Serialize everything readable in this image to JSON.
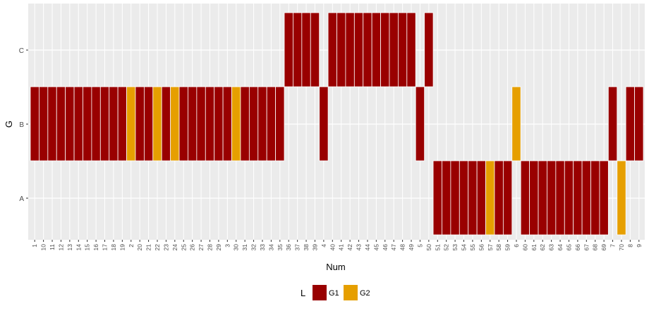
{
  "chart_data": {
    "type": "heatmap",
    "xlabel": "Num",
    "ylabel": "G",
    "y_categories": [
      "A",
      "B",
      "C"
    ],
    "x_categories": [
      "1",
      "10",
      "11",
      "12",
      "13",
      "14",
      "15",
      "16",
      "17",
      "18",
      "19",
      "2",
      "20",
      "21",
      "22",
      "23",
      "24",
      "25",
      "26",
      "27",
      "28",
      "29",
      "3",
      "30",
      "31",
      "32",
      "33",
      "34",
      "35",
      "36",
      "37",
      "38",
      "39",
      "4",
      "40",
      "41",
      "42",
      "43",
      "44",
      "45",
      "46",
      "47",
      "48",
      "49",
      "5",
      "50",
      "51",
      "52",
      "53",
      "54",
      "55",
      "56",
      "57",
      "58",
      "59",
      "6",
      "60",
      "61",
      "62",
      "63",
      "64",
      "65",
      "66",
      "67",
      "68",
      "69",
      "7",
      "70",
      "8",
      "9"
    ],
    "points": [
      [
        "1",
        "B",
        "G1"
      ],
      [
        "10",
        "B",
        "G1"
      ],
      [
        "11",
        "B",
        "G1"
      ],
      [
        "12",
        "B",
        "G1"
      ],
      [
        "13",
        "B",
        "G1"
      ],
      [
        "14",
        "B",
        "G1"
      ],
      [
        "15",
        "B",
        "G1"
      ],
      [
        "16",
        "B",
        "G1"
      ],
      [
        "17",
        "B",
        "G1"
      ],
      [
        "18",
        "B",
        "G1"
      ],
      [
        "19",
        "B",
        "G1"
      ],
      [
        "2",
        "B",
        "G2"
      ],
      [
        "20",
        "B",
        "G1"
      ],
      [
        "21",
        "B",
        "G1"
      ],
      [
        "22",
        "B",
        "G2"
      ],
      [
        "23",
        "B",
        "G1"
      ],
      [
        "24",
        "B",
        "G2"
      ],
      [
        "25",
        "B",
        "G1"
      ],
      [
        "26",
        "B",
        "G1"
      ],
      [
        "27",
        "B",
        "G1"
      ],
      [
        "28",
        "B",
        "G1"
      ],
      [
        "29",
        "B",
        "G1"
      ],
      [
        "3",
        "B",
        "G1"
      ],
      [
        "30",
        "B",
        "G2"
      ],
      [
        "31",
        "B",
        "G1"
      ],
      [
        "32",
        "B",
        "G1"
      ],
      [
        "33",
        "B",
        "G1"
      ],
      [
        "34",
        "B",
        "G1"
      ],
      [
        "35",
        "B",
        "G1"
      ],
      [
        "36",
        "C",
        "G1"
      ],
      [
        "37",
        "C",
        "G1"
      ],
      [
        "38",
        "C",
        "G1"
      ],
      [
        "39",
        "C",
        "G1"
      ],
      [
        "4",
        "B",
        "G1"
      ],
      [
        "40",
        "C",
        "G1"
      ],
      [
        "41",
        "C",
        "G1"
      ],
      [
        "42",
        "C",
        "G1"
      ],
      [
        "43",
        "C",
        "G1"
      ],
      [
        "44",
        "C",
        "G1"
      ],
      [
        "45",
        "C",
        "G1"
      ],
      [
        "46",
        "C",
        "G1"
      ],
      [
        "47",
        "C",
        "G1"
      ],
      [
        "48",
        "C",
        "G1"
      ],
      [
        "49",
        "C",
        "G1"
      ],
      [
        "5",
        "B",
        "G1"
      ],
      [
        "50",
        "C",
        "G1"
      ],
      [
        "51",
        "A",
        "G1"
      ],
      [
        "52",
        "A",
        "G1"
      ],
      [
        "53",
        "A",
        "G1"
      ],
      [
        "54",
        "A",
        "G1"
      ],
      [
        "55",
        "A",
        "G1"
      ],
      [
        "56",
        "A",
        "G1"
      ],
      [
        "57",
        "A",
        "G2"
      ],
      [
        "58",
        "A",
        "G1"
      ],
      [
        "59",
        "A",
        "G1"
      ],
      [
        "6",
        "B",
        "G2"
      ],
      [
        "60",
        "A",
        "G1"
      ],
      [
        "61",
        "A",
        "G1"
      ],
      [
        "62",
        "A",
        "G1"
      ],
      [
        "63",
        "A",
        "G1"
      ],
      [
        "64",
        "A",
        "G1"
      ],
      [
        "65",
        "A",
        "G1"
      ],
      [
        "66",
        "A",
        "G1"
      ],
      [
        "67",
        "A",
        "G1"
      ],
      [
        "68",
        "A",
        "G1"
      ],
      [
        "69",
        "A",
        "G1"
      ],
      [
        "7",
        "B",
        "G1"
      ],
      [
        "70",
        "A",
        "G2"
      ],
      [
        "8",
        "B",
        "G1"
      ],
      [
        "9",
        "B",
        "G1"
      ]
    ],
    "legend": {
      "title": "L",
      "position": "bottom",
      "entries": [
        {
          "label": "G1",
          "color": "#990000"
        },
        {
          "label": "G2",
          "color": "#E69F00"
        }
      ]
    },
    "grid": true
  }
}
